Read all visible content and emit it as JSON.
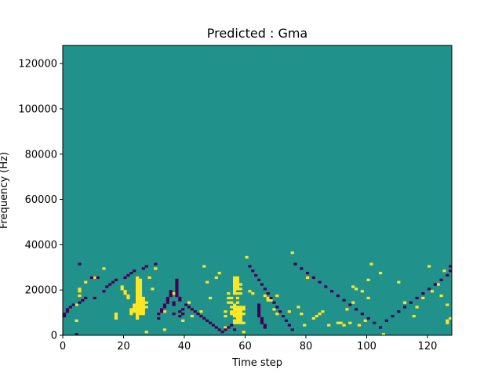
{
  "chart_data": {
    "type": "heatmap",
    "title": "Predicted : Gma",
    "xlabel": "Time step",
    "ylabel": "Frequency (Hz)",
    "xlim": [
      0,
      128
    ],
    "ylim": [
      0,
      128000
    ],
    "xticks": [
      "0",
      "20",
      "40",
      "60",
      "80",
      "100",
      "120"
    ],
    "yticks": [
      "0",
      "20000",
      "40000",
      "60000",
      "80000",
      "100000",
      "120000"
    ],
    "grid": false,
    "colors": {
      "background": "#21918c",
      "high": "#fde725",
      "low": "#440154"
    },
    "cells": {
      "high": [
        [
          4,
          6
        ],
        [
          4,
          13
        ],
        [
          5,
          17
        ],
        [
          5,
          19
        ],
        [
          5,
          20
        ],
        [
          7,
          23
        ],
        [
          10,
          25
        ],
        [
          13,
          29
        ],
        [
          17,
          9
        ],
        [
          17,
          8
        ],
        [
          17,
          7
        ],
        [
          19,
          20
        ],
        [
          19,
          21
        ],
        [
          20,
          19
        ],
        [
          20,
          18
        ],
        [
          21,
          17
        ],
        [
          21,
          16
        ],
        [
          22,
          9
        ],
        [
          22,
          10
        ],
        [
          22,
          11
        ],
        [
          23,
          10
        ],
        [
          23,
          11
        ],
        [
          23,
          12
        ],
        [
          23,
          13
        ],
        [
          24,
          7
        ],
        [
          24,
          8
        ],
        [
          24,
          9
        ],
        [
          24,
          10
        ],
        [
          24,
          11
        ],
        [
          24,
          12
        ],
        [
          24,
          13
        ],
        [
          24,
          14
        ],
        [
          24,
          15
        ],
        [
          24,
          16
        ],
        [
          24,
          17
        ],
        [
          24,
          18
        ],
        [
          24,
          19
        ],
        [
          24,
          20
        ],
        [
          24,
          21
        ],
        [
          24,
          22
        ],
        [
          24,
          23
        ],
        [
          24,
          24
        ],
        [
          24,
          25
        ],
        [
          25,
          9
        ],
        [
          25,
          10
        ],
        [
          25,
          11
        ],
        [
          25,
          12
        ],
        [
          25,
          13
        ],
        [
          25,
          14
        ],
        [
          25,
          15
        ],
        [
          25,
          16
        ],
        [
          25,
          17
        ],
        [
          25,
          18
        ],
        [
          25,
          19
        ],
        [
          25,
          20
        ],
        [
          25,
          21
        ],
        [
          25,
          22
        ],
        [
          25,
          23
        ],
        [
          25,
          24
        ],
        [
          26,
          9
        ],
        [
          26,
          10
        ],
        [
          26,
          11
        ],
        [
          26,
          12
        ],
        [
          26,
          13
        ],
        [
          26,
          14
        ],
        [
          26,
          15
        ],
        [
          26,
          16
        ],
        [
          27,
          1
        ],
        [
          27,
          12
        ],
        [
          27,
          14
        ],
        [
          28,
          25
        ],
        [
          29,
          20
        ],
        [
          30,
          29
        ],
        [
          33,
          2
        ],
        [
          33,
          10
        ],
        [
          36,
          18
        ],
        [
          39,
          6
        ],
        [
          41,
          14
        ],
        [
          42,
          8
        ],
        [
          45,
          10
        ],
        [
          46,
          30
        ],
        [
          47,
          23
        ],
        [
          48,
          16
        ],
        [
          50,
          25
        ],
        [
          51,
          27
        ],
        [
          53,
          3
        ],
        [
          53,
          8
        ],
        [
          53,
          10
        ],
        [
          54,
          14
        ],
        [
          54,
          16
        ],
        [
          54,
          18
        ],
        [
          55,
          9
        ],
        [
          55,
          10
        ],
        [
          55,
          12
        ],
        [
          55,
          14
        ],
        [
          55,
          16
        ],
        [
          56,
          5
        ],
        [
          56,
          6
        ],
        [
          56,
          8
        ],
        [
          56,
          9
        ],
        [
          56,
          10
        ],
        [
          56,
          11
        ],
        [
          56,
          12
        ],
        [
          56,
          13
        ],
        [
          56,
          18
        ],
        [
          56,
          19
        ],
        [
          56,
          20
        ],
        [
          56,
          21
        ],
        [
          56,
          22
        ],
        [
          56,
          23
        ],
        [
          56,
          24
        ],
        [
          56,
          25
        ],
        [
          57,
          5
        ],
        [
          57,
          6
        ],
        [
          57,
          7
        ],
        [
          57,
          8
        ],
        [
          57,
          9
        ],
        [
          57,
          10
        ],
        [
          57,
          11
        ],
        [
          57,
          12
        ],
        [
          57,
          14
        ],
        [
          57,
          16
        ],
        [
          57,
          18
        ],
        [
          57,
          20
        ],
        [
          57,
          21
        ],
        [
          57,
          22
        ],
        [
          57,
          23
        ],
        [
          57,
          24
        ],
        [
          57,
          25
        ],
        [
          58,
          5
        ],
        [
          58,
          6
        ],
        [
          58,
          7
        ],
        [
          58,
          8
        ],
        [
          58,
          9
        ],
        [
          58,
          10
        ],
        [
          58,
          11
        ],
        [
          58,
          12
        ],
        [
          58,
          18
        ],
        [
          58,
          20
        ],
        [
          58,
          22
        ],
        [
          59,
          1
        ],
        [
          59,
          5
        ],
        [
          59,
          9
        ],
        [
          59,
          11
        ],
        [
          59,
          12
        ],
        [
          60,
          34
        ],
        [
          61,
          19
        ],
        [
          62,
          18
        ],
        [
          66,
          17
        ],
        [
          67,
          15
        ],
        [
          67,
          16
        ],
        [
          68,
          15
        ],
        [
          68,
          16
        ],
        [
          69,
          11
        ],
        [
          70,
          9
        ],
        [
          70,
          17
        ],
        [
          74,
          10
        ],
        [
          75,
          36
        ],
        [
          77,
          12
        ],
        [
          78,
          9
        ],
        [
          79,
          4
        ],
        [
          80,
          25
        ],
        [
          82,
          7
        ],
        [
          83,
          8
        ],
        [
          84,
          9
        ],
        [
          85,
          10
        ],
        [
          87,
          4
        ],
        [
          90,
          5
        ],
        [
          91,
          5
        ],
        [
          92,
          4
        ],
        [
          93,
          11
        ],
        [
          94,
          5
        ],
        [
          95,
          14
        ],
        [
          95,
          21
        ],
        [
          96,
          20
        ],
        [
          97,
          4
        ],
        [
          98,
          19
        ],
        [
          99,
          6
        ],
        [
          100,
          16
        ],
        [
          100,
          24
        ],
        [
          101,
          31
        ],
        [
          104,
          27
        ],
        [
          105,
          0
        ],
        [
          110,
          23
        ],
        [
          112,
          14
        ],
        [
          115,
          8
        ],
        [
          116,
          12
        ],
        [
          118,
          16
        ],
        [
          120,
          30
        ],
        [
          121,
          19
        ],
        [
          123,
          22
        ],
        [
          124,
          17
        ],
        [
          125,
          28
        ],
        [
          126,
          13
        ],
        [
          126,
          5
        ],
        [
          126,
          6
        ],
        [
          127,
          7
        ]
      ],
      "low": [
        [
          0,
          8
        ],
        [
          0,
          9
        ],
        [
          1,
          10
        ],
        [
          1,
          11
        ],
        [
          2,
          12
        ],
        [
          3,
          13
        ],
        [
          4,
          0
        ],
        [
          5,
          14
        ],
        [
          5,
          31
        ],
        [
          6,
          15
        ],
        [
          7,
          16
        ],
        [
          9,
          25
        ],
        [
          10,
          16
        ],
        [
          11,
          25
        ],
        [
          13,
          19
        ],
        [
          14,
          21
        ],
        [
          15,
          22
        ],
        [
          16,
          23
        ],
        [
          17,
          24
        ],
        [
          20,
          25
        ],
        [
          21,
          26
        ],
        [
          22,
          27
        ],
        [
          23,
          28
        ],
        [
          26,
          29
        ],
        [
          27,
          30
        ],
        [
          30,
          31
        ],
        [
          31,
          9
        ],
        [
          31,
          7
        ],
        [
          32,
          11
        ],
        [
          32,
          10
        ],
        [
          33,
          13
        ],
        [
          33,
          12
        ],
        [
          34,
          14
        ],
        [
          34,
          15
        ],
        [
          34,
          16
        ],
        [
          35,
          19
        ],
        [
          35,
          18
        ],
        [
          35,
          17
        ],
        [
          36,
          14
        ],
        [
          36,
          13
        ],
        [
          36,
          9
        ],
        [
          37,
          24
        ],
        [
          37,
          23
        ],
        [
          37,
          22
        ],
        [
          37,
          21
        ],
        [
          37,
          20
        ],
        [
          37,
          19
        ],
        [
          37,
          18
        ],
        [
          37,
          17
        ],
        [
          38,
          16
        ],
        [
          38,
          15
        ],
        [
          38,
          10
        ],
        [
          38,
          8
        ],
        [
          39,
          11
        ],
        [
          39,
          9
        ],
        [
          40,
          13
        ],
        [
          41,
          12
        ],
        [
          42,
          11
        ],
        [
          43,
          10
        ],
        [
          44,
          9
        ],
        [
          45,
          8
        ],
        [
          46,
          7
        ],
        [
          47,
          6
        ],
        [
          48,
          5
        ],
        [
          49,
          4
        ],
        [
          50,
          3
        ],
        [
          51,
          2
        ],
        [
          52,
          1
        ],
        [
          53,
          2
        ],
        [
          54,
          3
        ],
        [
          55,
          4
        ],
        [
          56,
          2
        ],
        [
          61,
          30
        ],
        [
          62,
          28
        ],
        [
          63,
          26
        ],
        [
          64,
          24
        ],
        [
          65,
          22
        ],
        [
          66,
          20
        ],
        [
          67,
          18
        ],
        [
          68,
          16
        ],
        [
          69,
          14
        ],
        [
          70,
          12
        ],
        [
          71,
          10
        ],
        [
          72,
          8
        ],
        [
          73,
          6
        ],
        [
          74,
          4
        ],
        [
          75,
          2
        ],
        [
          64,
          13
        ],
        [
          64,
          12
        ],
        [
          64,
          11
        ],
        [
          64,
          10
        ],
        [
          64,
          9
        ],
        [
          64,
          8
        ],
        [
          65,
          7
        ],
        [
          65,
          6
        ],
        [
          65,
          5
        ],
        [
          66,
          4
        ],
        [
          66,
          3
        ],
        [
          76,
          31
        ],
        [
          78,
          29
        ],
        [
          80,
          27
        ],
        [
          82,
          25
        ],
        [
          84,
          23
        ],
        [
          86,
          21
        ],
        [
          88,
          19
        ],
        [
          90,
          17
        ],
        [
          92,
          15
        ],
        [
          94,
          13
        ],
        [
          96,
          11
        ],
        [
          98,
          9
        ],
        [
          100,
          7
        ],
        [
          102,
          5
        ],
        [
          104,
          3
        ],
        [
          106,
          6
        ],
        [
          108,
          8
        ],
        [
          110,
          10
        ],
        [
          112,
          12
        ],
        [
          114,
          14
        ],
        [
          116,
          16
        ],
        [
          118,
          18
        ],
        [
          120,
          20
        ],
        [
          122,
          22
        ],
        [
          124,
          24
        ],
        [
          126,
          26
        ],
        [
          127,
          28
        ],
        [
          127,
          30
        ]
      ]
    }
  }
}
